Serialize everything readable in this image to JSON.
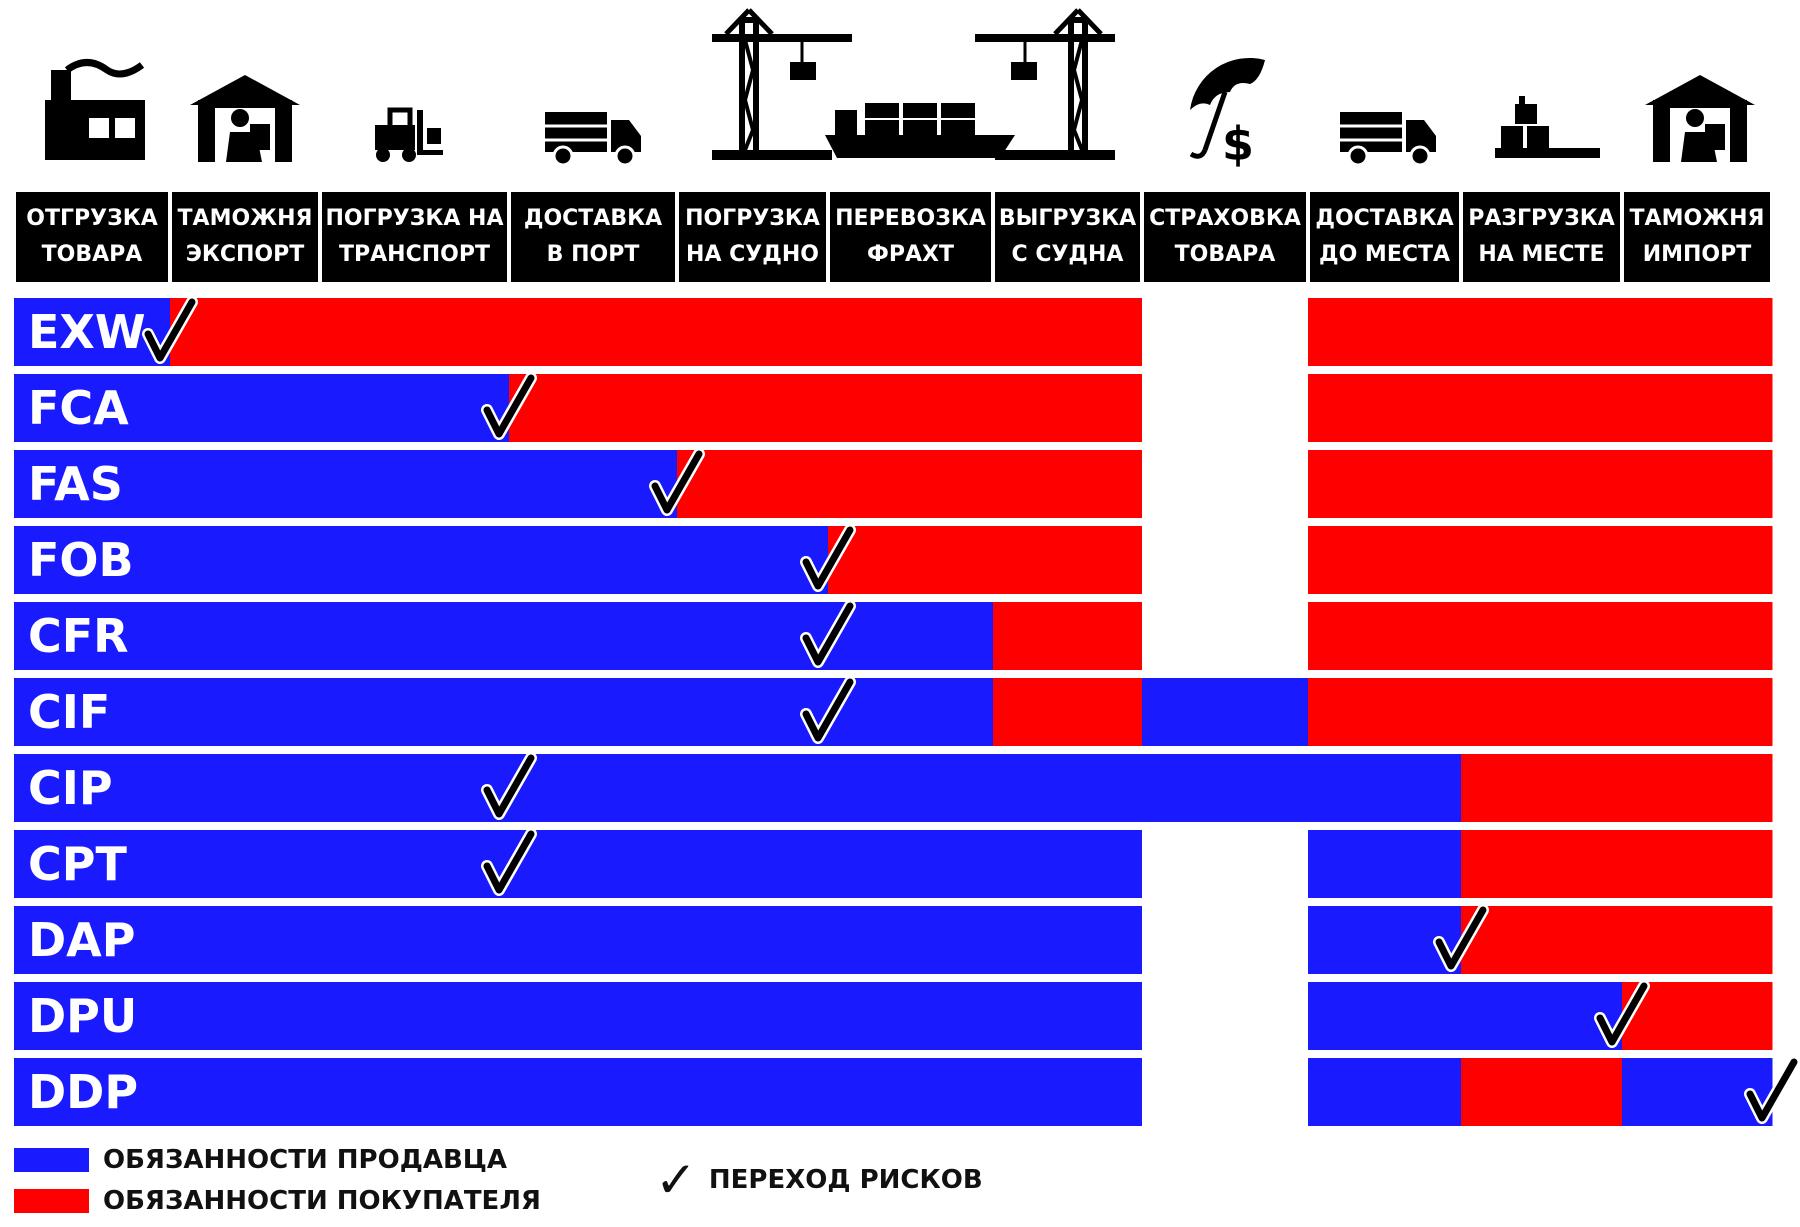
{
  "columns": [
    {
      "line1": "ОТГРУЗКА",
      "line2": "ТОВАРА",
      "icon": "factory-icon"
    },
    {
      "line1": "ТАМОЖНЯ",
      "line2": "ЭКСПОРТ",
      "icon": "customs-house-icon"
    },
    {
      "line1": "ПОГРУЗКА НА",
      "line2": "ТРАНСПОРТ",
      "icon": "forklift-icon"
    },
    {
      "line1": "ДОСТАВКА",
      "line2": "В ПОРТ",
      "icon": "truck-icon"
    },
    {
      "line1": "ПОГРУЗКА",
      "line2": "НА СУДНО",
      "icon": "crane-icon"
    },
    {
      "line1": "ПЕРЕВОЗКА",
      "line2": "ФРАХТ",
      "icon": "ship-icon"
    },
    {
      "line1": "ВЫГРУЗКА",
      "line2": "С СУДНА",
      "icon": "crane-icon"
    },
    {
      "line1": "СТРАХОВКА",
      "line2": "ТОВАРА",
      "icon": "umbrella-dollar-icon"
    },
    {
      "line1": "ДОСТАВКА",
      "line2": "ДО МЕСТА",
      "icon": "truck-icon"
    },
    {
      "line1": "РАЗГРУЗКА",
      "line2": "НА МЕСТЕ",
      "icon": "unloading-boxes-icon"
    },
    {
      "line1": "ТАМОЖНЯ",
      "line2": "ИМПОРТ",
      "icon": "customs-house-icon"
    }
  ],
  "colors": {
    "seller": "#1a1aff",
    "buyer": "#ff0000",
    "none": "#ffffff",
    "header_bg": "#000000"
  },
  "terms": [
    {
      "code": "EXW",
      "cells": [
        "S",
        "B",
        "B",
        "B",
        "B",
        "B",
        "B",
        "N",
        "B",
        "B",
        "B"
      ],
      "risk_transfer_column": 1
    },
    {
      "code": "FCA",
      "cells": [
        "S",
        "S",
        "S",
        "B",
        "B",
        "B",
        "B",
        "N",
        "B",
        "B",
        "B"
      ],
      "risk_transfer_column": 3
    },
    {
      "code": "FAS",
      "cells": [
        "S",
        "S",
        "S",
        "S",
        "B",
        "B",
        "B",
        "N",
        "B",
        "B",
        "B"
      ],
      "risk_transfer_column": 4
    },
    {
      "code": "FOB",
      "cells": [
        "S",
        "S",
        "S",
        "S",
        "S",
        "B",
        "B",
        "N",
        "B",
        "B",
        "B"
      ],
      "risk_transfer_column": 5
    },
    {
      "code": "CFR",
      "cells": [
        "S",
        "S",
        "S",
        "S",
        "S",
        "S",
        "B",
        "N",
        "B",
        "B",
        "B"
      ],
      "risk_transfer_column": 5
    },
    {
      "code": "CIF",
      "cells": [
        "S",
        "S",
        "S",
        "S",
        "S",
        "S",
        "B",
        "S",
        "B",
        "B",
        "B"
      ],
      "risk_transfer_column": 5
    },
    {
      "code": "CIP",
      "cells": [
        "S",
        "S",
        "S",
        "S",
        "S",
        "S",
        "S",
        "S",
        "S",
        "B",
        "B"
      ],
      "risk_transfer_column": 3
    },
    {
      "code": "CPT",
      "cells": [
        "S",
        "S",
        "S",
        "S",
        "S",
        "S",
        "S",
        "N",
        "S",
        "B",
        "B"
      ],
      "risk_transfer_column": 3
    },
    {
      "code": "DAP",
      "cells": [
        "S",
        "S",
        "S",
        "S",
        "S",
        "S",
        "S",
        "N",
        "S",
        "B",
        "B"
      ],
      "risk_transfer_column": 9
    },
    {
      "code": "DPU",
      "cells": [
        "S",
        "S",
        "S",
        "S",
        "S",
        "S",
        "S",
        "N",
        "S",
        "S",
        "B"
      ],
      "risk_transfer_column": 10
    },
    {
      "code": "DDP",
      "cells": [
        "S",
        "S",
        "S",
        "S",
        "S",
        "S",
        "S",
        "N",
        "S",
        "B",
        "S"
      ],
      "risk_transfer_column": 11
    }
  ],
  "legend": {
    "seller": "ОБЯЗАННОСТИ ПРОДАВЦА",
    "buyer": "ОБЯЗАННОСТИ ПОКУПАТЕЛЯ",
    "risk": "ПЕРЕХОД РИСКОВ",
    "risk_symbol": "✓"
  }
}
